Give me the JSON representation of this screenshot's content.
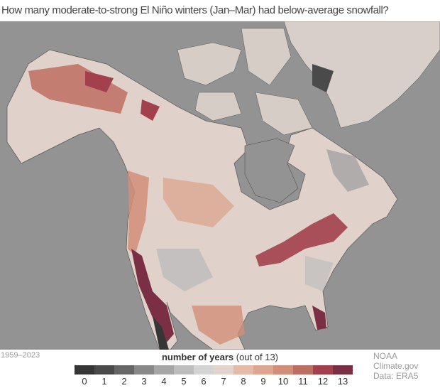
{
  "title": "How many moderate-to-strong El Niño winters (Jan–Mar) had below-average snowfall?",
  "period": "1959–2023",
  "legend": {
    "title_bold": "number of years",
    "title_rest": " (out of 13)",
    "labels": [
      "0",
      "1",
      "2",
      "3",
      "4",
      "5",
      "6",
      "7",
      "8",
      "9",
      "10",
      "11",
      "12",
      "13"
    ],
    "colors": [
      "#353535",
      "#494949",
      "#666666",
      "#888888",
      "#a6a6a6",
      "#bdbdbd",
      "#d3d3d3",
      "#e2d4cc",
      "#e3bba8",
      "#dca691",
      "#d28e78",
      "#bd6e62",
      "#a2404e",
      "#7b2f45"
    ]
  },
  "credits": {
    "source": "NOAA Climate.gov",
    "data": "Data: ERA5"
  },
  "colors": {
    "ocean": "#939393",
    "land_borders": "#555555"
  }
}
